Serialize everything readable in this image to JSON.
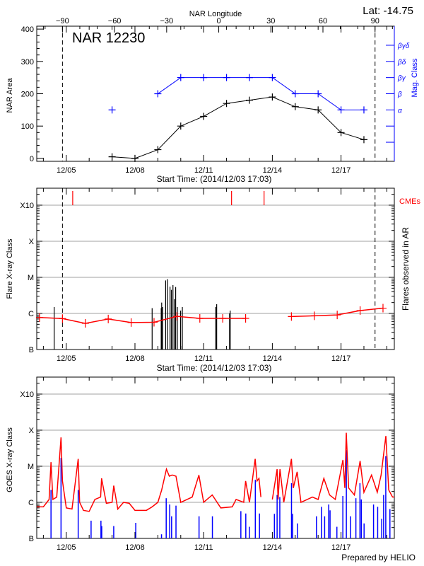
{
  "colors": {
    "axis": "#000000",
    "mag_class": "#0000ff",
    "cme": "#ff0000",
    "flare_avg": "#ff0000",
    "grid": "#a0a0a0",
    "goes_long": "#ff0000",
    "goes_short": "#0000ff"
  },
  "header": {
    "lat_label": "Lat: -14.75",
    "footer": "Prepared by HELIO"
  },
  "chart_data": [
    {
      "type": "line",
      "title": "NAR 12230",
      "xlabel": "Start Time: (2014/12/03 17:03)",
      "ylabel": "NAR Area",
      "y2label": "Mag. Class",
      "top_axis_label": "NAR Longitude",
      "xlim": [
        "12/03 17:03",
        "12/19 08:00"
      ],
      "ylim": [
        -9,
        409
      ],
      "x_tick_labels": [
        "12/05",
        "12/08",
        "12/11",
        "12/14",
        "12/17"
      ],
      "y_tick_labels": [
        "0",
        "100",
        "200",
        "300",
        "400"
      ],
      "longitude_ticks": [
        "-90",
        "-60",
        "-30",
        "0",
        "30",
        "60",
        "90"
      ],
      "longitude_limb_dates": [
        "12/04 20:00",
        "12/18 11:40"
      ],
      "mag_class_levels": [
        "",
        "",
        "α",
        "β",
        "βγ",
        "βδ",
        "βγδ"
      ],
      "area_series": {
        "x": [
          "12/07 00:00",
          "12/08 00:00",
          "12/09 00:00",
          "12/10 00:00",
          "12/11 00:00",
          "12/12 00:00",
          "12/13 00:00",
          "12/14 00:00",
          "12/15 00:00",
          "12/16 00:00",
          "12/17 00:00",
          "12/18 00:00"
        ],
        "values": [
          5,
          0,
          27,
          100,
          130,
          170,
          180,
          190,
          160,
          150,
          80,
          58
        ]
      },
      "mag_series": {
        "x": [
          "12/07 00:00",
          "12/09 00:00",
          "12/10 00:00",
          "12/11 00:00",
          "12/12 00:00",
          "12/13 00:00",
          "12/14 00:00",
          "12/15 00:00",
          "12/16 00:00",
          "12/17 00:00",
          "12/18 00:00"
        ],
        "values": [
          "α",
          "β",
          "βγ",
          "βγ",
          "βγ",
          "βγ",
          "βγ",
          "β",
          "β",
          "α",
          "α"
        ],
        "connected_from": 1
      }
    },
    {
      "type": "bar",
      "xlabel": "Start Time: (2014/12/03 17:03)",
      "ylabel": "Flare X-ray Class",
      "y2label": "Flares observed in AR",
      "cme_label": "CMEs",
      "y_scale": "log",
      "y_tick_labels": [
        "B",
        "C",
        "M",
        "X",
        "X10"
      ],
      "x_tick_labels": [
        "12/05",
        "12/08",
        "12/11",
        "12/14",
        "12/17"
      ],
      "grid": true,
      "flares": [
        [
          "12/04 11:20",
          "C1.5"
        ],
        [
          "12/08 18:00",
          "C1.4"
        ],
        [
          "12/09 03:30",
          "C1.4"
        ],
        [
          "12/09 04:00",
          "C2.0"
        ],
        [
          "12/09 05:00",
          "C1.5"
        ],
        [
          "12/09 08:10",
          "C8.2"
        ],
        [
          "12/09 10:00",
          "C8.9"
        ],
        [
          "12/09 12:45",
          "C5.5"
        ],
        [
          "12/09 14:10",
          "C4.5"
        ],
        [
          "12/09 15:50",
          "C6.1"
        ],
        [
          "12/09 17:20",
          "C2.5"
        ],
        [
          "12/09 18:40",
          "C5.4"
        ],
        [
          "12/09 20:25",
          "C1.5"
        ],
        [
          "12/09 23:50",
          "C1.2"
        ],
        [
          "12/10 01:40",
          "C1.5"
        ],
        [
          "12/11 12:40",
          "C1.5"
        ],
        [
          "12/11 13:40",
          "C1.8"
        ],
        [
          "12/12 03:10",
          "C1.0"
        ],
        [
          "12/12 03:50",
          "C1.2"
        ]
      ],
      "cmes": [
        "12/05 06:45",
        "12/12 05:15",
        "12/13 15:20"
      ],
      "daily_series": [
        [
          [
            "12/03 20:00",
            "B7.7"
          ],
          [
            "12/04 20:00",
            "B7.2"
          ],
          [
            "12/05 20:00",
            "B5.3"
          ],
          [
            "12/06 20:00",
            "B7.0"
          ],
          [
            "12/07 20:00",
            "B5.6"
          ],
          [
            "12/08 20:00",
            "B5.7"
          ],
          [
            "12/09 20:00",
            "B8.3"
          ],
          [
            "12/10 20:00",
            "B7.3"
          ],
          [
            "12/11 20:00",
            "B7.3"
          ],
          [
            "12/12 20:00",
            "B7.3"
          ]
        ],
        [
          [
            "12/14 20:00",
            "B8.2"
          ],
          [
            "12/15 20:00",
            "B8.6"
          ],
          [
            "12/16 20:00",
            "B9.1"
          ],
          [
            "12/17 20:00",
            "C1.2"
          ],
          [
            "12/18 20:00",
            "C1.4"
          ]
        ]
      ]
    },
    {
      "type": "line",
      "ylabel": "GOES X-ray Class",
      "y_scale": "log",
      "y_tick_labels": [
        "B",
        "C",
        "M",
        "X",
        "X10"
      ],
      "x_tick_labels": [
        "12/05",
        "12/08",
        "12/11",
        "12/14",
        "12/17"
      ],
      "grid": true,
      "long_channel": [
        [
          [
            "12/03 17:03",
            "B7.5"
          ],
          [
            "12/04 00:00",
            "B7.5"
          ],
          [
            "12/04 06:00",
            "C1.2"
          ],
          [
            "12/04 08:00",
            "M1.3"
          ],
          [
            "12/04 10:00",
            "C1.2"
          ],
          [
            "12/04 14:00",
            "C1.4"
          ],
          [
            "12/04 18:30",
            "M6.3"
          ],
          [
            "12/04 20:00",
            "C3.9"
          ],
          [
            "12/05 00:00",
            "B7.0"
          ],
          [
            "12/05 06:00",
            "B6.5"
          ],
          [
            "12/05 12:30",
            "M1.6"
          ],
          [
            "12/05 14:00",
            "C1.0"
          ],
          [
            "12/05 18:00",
            "B6.0"
          ],
          [
            "12/06 00:00",
            "B5.6"
          ],
          [
            "12/06 06:00",
            "C1.2"
          ],
          [
            "12/06 12:00",
            "C1.4"
          ],
          [
            "12/06 13:00",
            "C4.6"
          ],
          [
            "12/06 18:00",
            "B9.4"
          ],
          [
            "12/07 00:00",
            "C1.0"
          ],
          [
            "12/07 01:45",
            "C2.9"
          ],
          [
            "12/07 06:00",
            "B6.5"
          ],
          [
            "12/07 12:00",
            "C1.0"
          ],
          [
            "12/07 18:00",
            "B9.4"
          ],
          [
            "12/08 00:00",
            "B6.0"
          ],
          [
            "12/08 12:00",
            "B6.0"
          ],
          [
            "12/08 18:00",
            "B7.5"
          ],
          [
            "12/09 00:00",
            "C1.0"
          ],
          [
            "12/09 04:00",
            "C2.2"
          ],
          [
            "12/09 09:00",
            "C8.3"
          ],
          [
            "12/09 12:00",
            "C5.3"
          ],
          [
            "12/09 15:00",
            "C5.7"
          ],
          [
            "12/09 19:00",
            "C5.3"
          ],
          [
            "12/10 00:00",
            "C1.0"
          ],
          [
            "12/10 12:00",
            "C1.4"
          ],
          [
            "12/10 19:00",
            "C5.7"
          ],
          [
            "12/11 00:00",
            "C1.0"
          ],
          [
            "12/11 09:00",
            "C1.6"
          ],
          [
            "12/11 18:00",
            "B7.0"
          ],
          [
            "12/12 06:00",
            "B7.5"
          ],
          [
            "12/12 10:00",
            "C1.2"
          ],
          [
            "12/12 18:00",
            "C1.0"
          ],
          [
            "12/12 20:00",
            "C3.9"
          ],
          [
            "12/13 00:00",
            "C1.0"
          ],
          [
            "12/13 06:00",
            "M1.6"
          ],
          [
            "12/13 08:00",
            "C3.9"
          ],
          [
            "12/13 10:00",
            "C4.6"
          ],
          [
            "12/13 12:00",
            "C1.4"
          ]
        ],
        [
          [
            "12/14 00:00",
            "C1.2"
          ],
          [
            "12/14 05:00",
            "C8.3"
          ],
          [
            "12/14 06:00",
            "C1.2"
          ],
          [
            "12/14 08:00",
            "C8.3"
          ],
          [
            "12/14 12:00",
            "C1.0"
          ],
          [
            "12/14 20:00",
            "M1.6"
          ],
          [
            "12/14 22:00",
            "C2.5"
          ],
          [
            "12/15 02:00",
            "C7.0"
          ],
          [
            "12/15 06:00",
            "C1.0"
          ],
          [
            "12/15 18:00",
            "C1.4"
          ],
          [
            "12/16 00:00",
            "C1.2"
          ],
          [
            "12/16 06:00",
            "C4.6"
          ],
          [
            "12/16 12:00",
            "C1.6"
          ],
          [
            "12/16 18:00",
            "C1.2"
          ],
          [
            "12/17 02:00",
            "M1.5"
          ],
          [
            "12/17 04:00",
            "C2.5"
          ],
          [
            "12/17 05:30",
            "M8.5"
          ],
          [
            "12/17 08:00",
            "C2.5"
          ],
          [
            "12/17 14:00",
            "C1.6"
          ],
          [
            "12/17 20:00",
            "M1.4"
          ],
          [
            "12/18 00:00",
            "C1.9"
          ],
          [
            "12/18 08:00",
            "C5.7"
          ],
          [
            "12/18 14:00",
            "C1.9"
          ],
          [
            "12/18 18:00",
            "C5.7"
          ],
          [
            "12/18 23:00",
            "M6.9"
          ],
          [
            "12/19 02:00",
            "C2.2"
          ],
          [
            "12/19 06:00",
            "C1.4"
          ],
          [
            "12/19 08:00",
            "C1.4"
          ]
        ]
      ],
      "short_channel_peaks": [
        [
          "12/04 08:00",
          "C2.2"
        ],
        [
          "12/04 18:30",
          "M1.7"
        ],
        [
          "12/05 12:30",
          "C2.2"
        ],
        [
          "12/06 02:00",
          "B3.1"
        ],
        [
          "12/06 12:20",
          "B3.1"
        ],
        [
          "12/06 13:10",
          "B2.2"
        ],
        [
          "12/07 01:45",
          "B2.2"
        ],
        [
          "12/08 00:50",
          "B2.7"
        ],
        [
          "12/09 03:50",
          "B1.3"
        ],
        [
          "12/09 08:45",
          "C1.3"
        ],
        [
          "12/09 12:25",
          "B8.7"
        ],
        [
          "12/09 14:25",
          "B4.1"
        ],
        [
          "12/09 19:00",
          "B8.1"
        ],
        [
          "12/10 19:10",
          "B4.1"
        ],
        [
          "12/11 09:10",
          "B4.1"
        ],
        [
          "12/12 15:00",
          "B5.7"
        ],
        [
          "12/12 20:10",
          "B4.9"
        ],
        [
          "12/12 23:55",
          "B2.1"
        ],
        [
          "12/13 06:10",
          "C4.2"
        ],
        [
          "12/13 10:30",
          "B4.9"
        ],
        [
          "12/14 02:10",
          "B4.8"
        ],
        [
          "12/14 05:00",
          "C1.6"
        ],
        [
          "12/14 07:50",
          "C1.4"
        ],
        [
          "12/14 20:05",
          "C3.4"
        ],
        [
          "12/14 21:15",
          "B4.8"
        ],
        [
          "12/15 02:20",
          "B2.6"
        ],
        [
          "12/15 22:15",
          "B4.1"
        ],
        [
          "12/16 03:25",
          "B7.5"
        ],
        [
          "12/16 06:50",
          "B4.1"
        ],
        [
          "12/16 11:05",
          "B8.7"
        ],
        [
          "12/16 12:30",
          "B6.0"
        ],
        [
          "12/16 19:40",
          "B2.1"
        ],
        [
          "12/17 01:55",
          "C1.5"
        ],
        [
          "12/17 05:35",
          "M2.8"
        ],
        [
          "12/17 09:55",
          "B4.1"
        ],
        [
          "12/17 15:35",
          "C1.3"
        ],
        [
          "12/17 19:50",
          "C3.4"
        ],
        [
          "12/17 21:15",
          "C1.2"
        ],
        [
          "12/18 00:10",
          "B2.6"
        ],
        [
          "12/18 10:05",
          "B8.7"
        ],
        [
          "12/18 14:25",
          "B7.5"
        ],
        [
          "12/18 18:40",
          "B3.5"
        ],
        [
          "12/18 20:40",
          "C1.6"
        ],
        [
          "12/18 22:55",
          "M1.9"
        ],
        [
          "12/19 03:15",
          "B6.5"
        ]
      ]
    }
  ]
}
